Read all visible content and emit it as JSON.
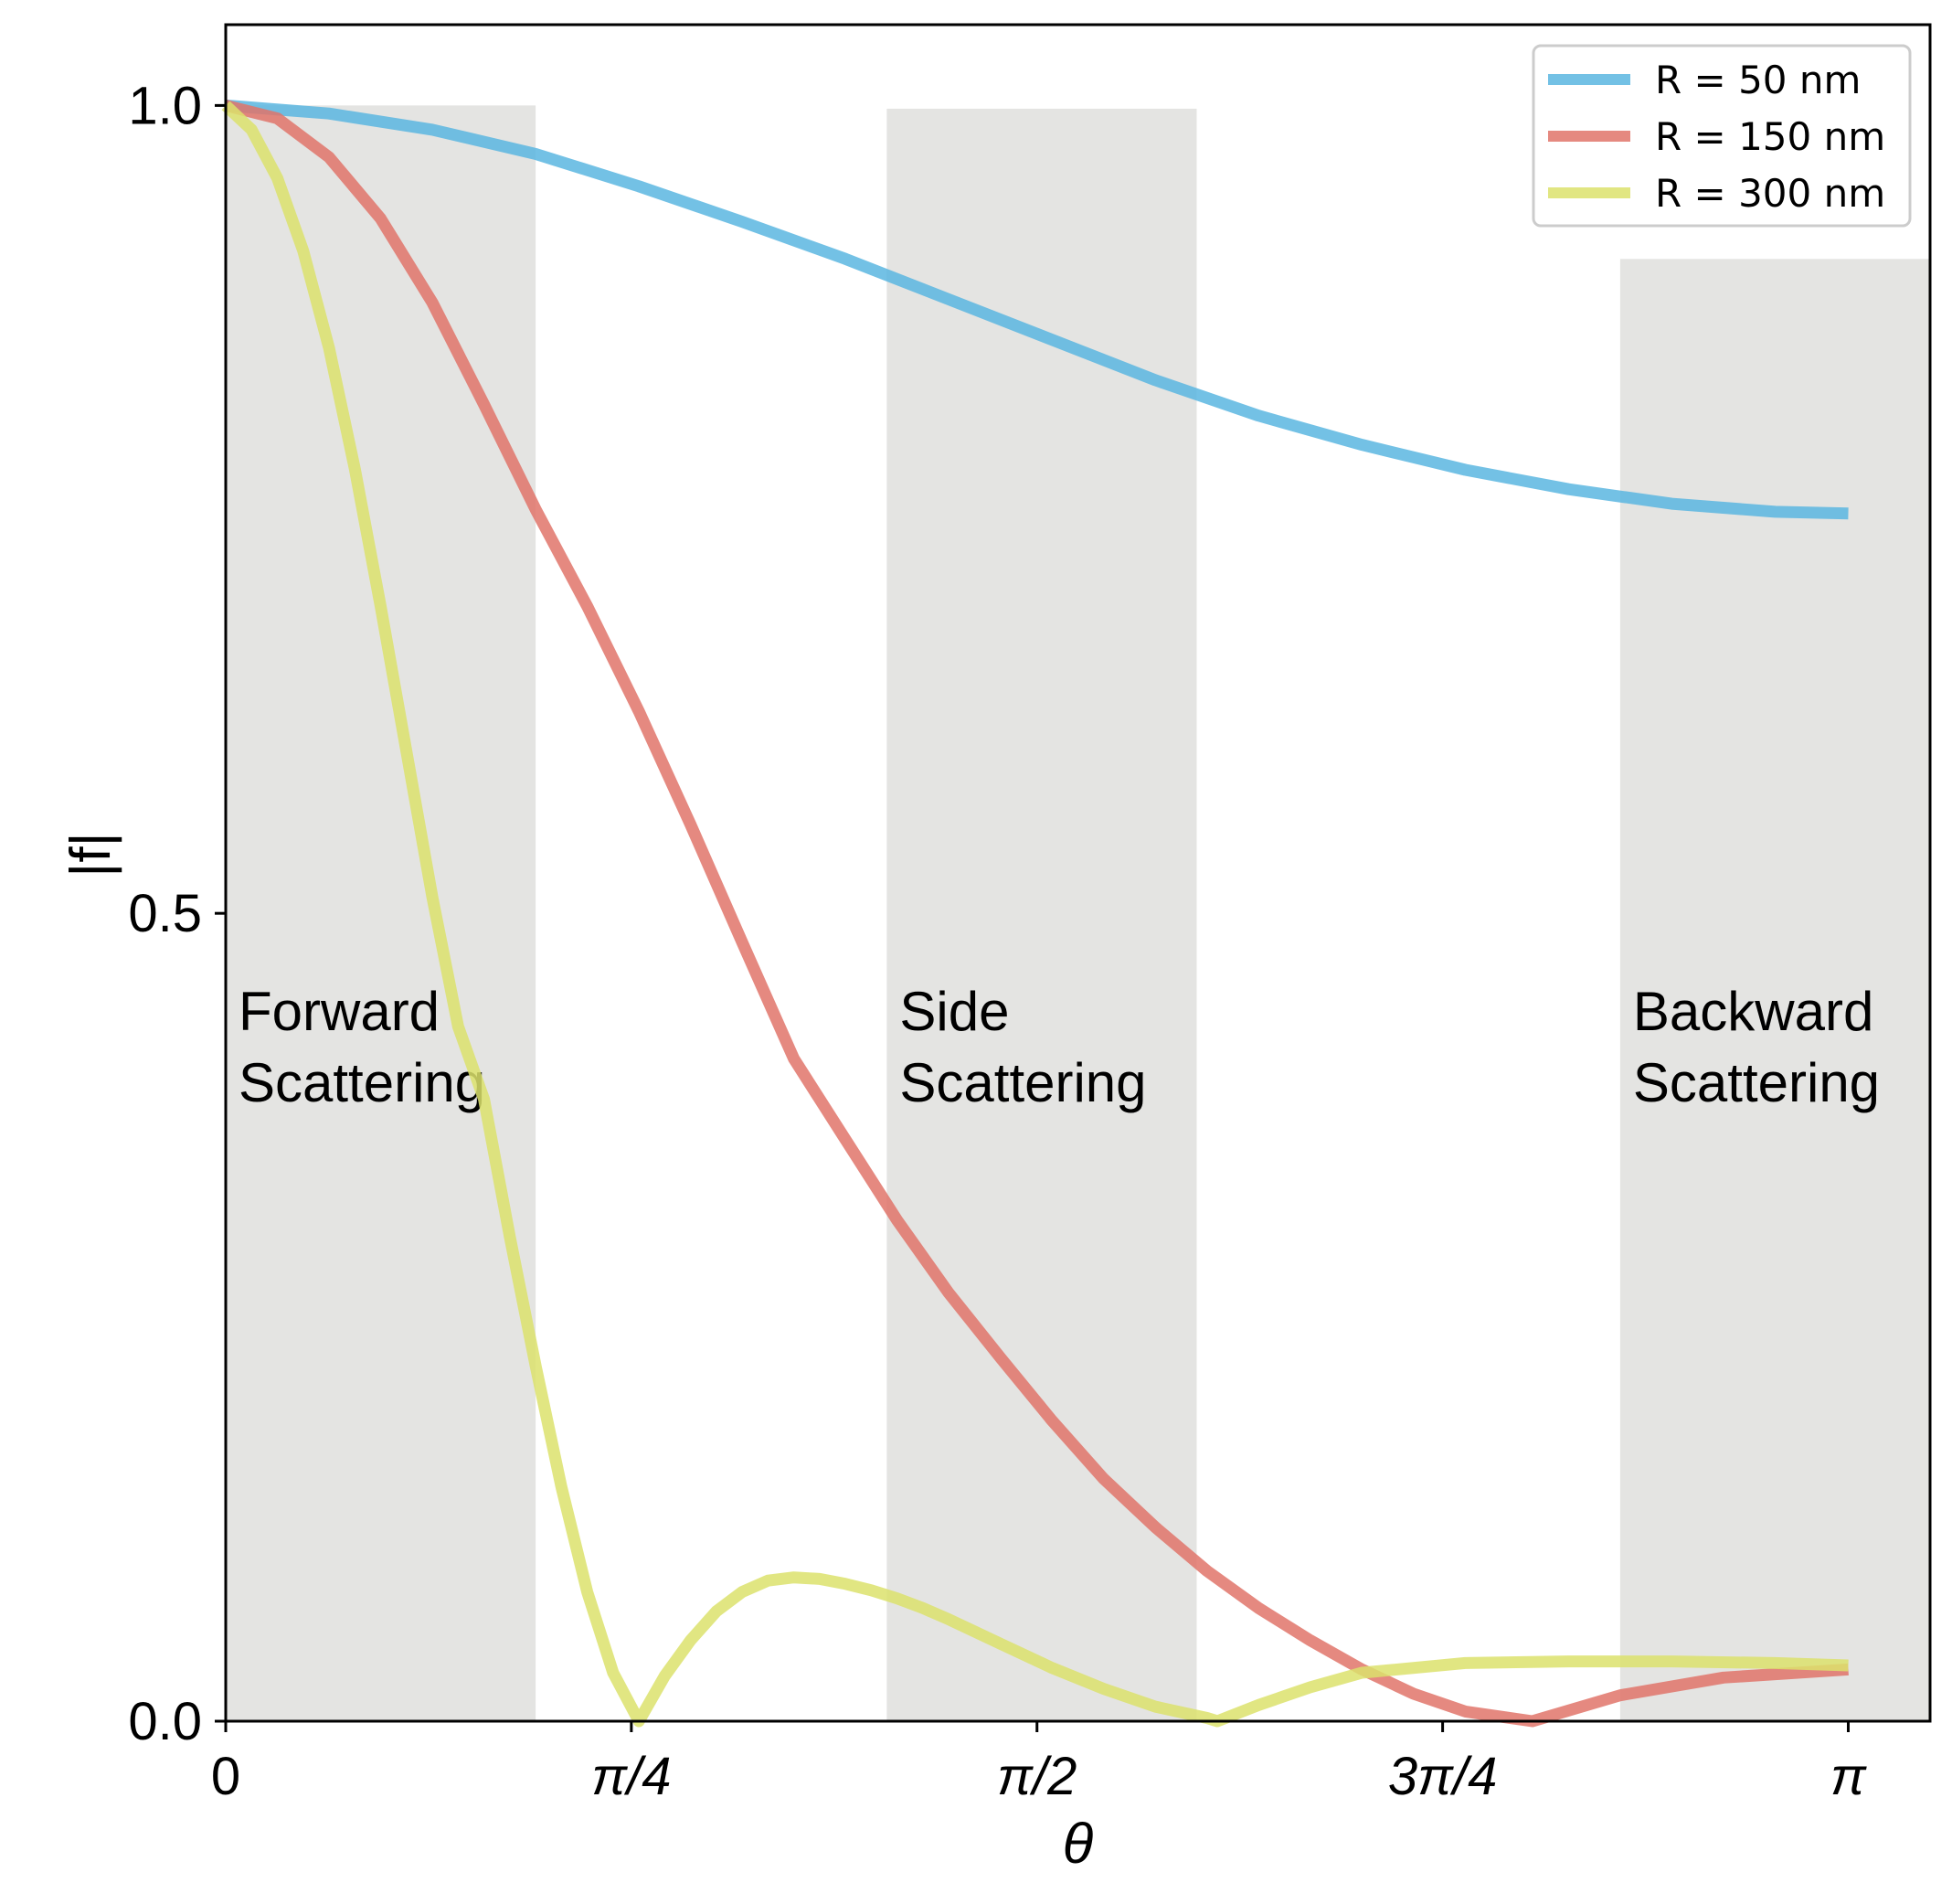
{
  "chart_data": {
    "type": "line",
    "xlabel": "θ",
    "ylabel": "|f|",
    "xlim": [
      0,
      3.3
    ],
    "ylim": [
      0,
      1.05
    ],
    "xticks": [
      {
        "value": 0,
        "label": "0"
      },
      {
        "value": 0.7854,
        "label": "π/4"
      },
      {
        "value": 1.5708,
        "label": "π/2"
      },
      {
        "value": 2.3562,
        "label": "3π/4"
      },
      {
        "value": 3.1416,
        "label": "π"
      }
    ],
    "yticks": [
      {
        "value": 0.0,
        "label": "0.0"
      },
      {
        "value": 0.5,
        "label": "0.5"
      },
      {
        "value": 1.0,
        "label": "1.0"
      }
    ],
    "grid": false,
    "legend_position": "top-right",
    "regions": [
      {
        "x_start": 0.0,
        "x_end": 0.6,
        "y_top": 1.0,
        "label_lines": [
          "Forward",
          "Scattering"
        ],
        "color": "#e4e4e2"
      },
      {
        "x_start": 1.28,
        "x_end": 1.88,
        "y_top": 0.998,
        "label_lines": [
          "Side",
          "Scattering"
        ],
        "color": "#e4e4e2"
      },
      {
        "x_start": 2.7,
        "x_end": 3.3,
        "y_top": 0.905,
        "label_lines": [
          "Backward",
          "Scattering"
        ],
        "color": "#e4e4e2"
      }
    ],
    "series": [
      {
        "name": "R = 50 nm",
        "color": "#5bb6e0",
        "x": [
          0,
          0.2,
          0.4,
          0.6,
          0.8,
          1.0,
          1.2,
          1.4,
          1.6,
          1.8,
          2.0,
          2.2,
          2.4,
          2.6,
          2.8,
          3.0,
          3.1416
        ],
        "y": [
          1.0,
          0.995,
          0.985,
          0.97,
          0.95,
          0.928,
          0.905,
          0.88,
          0.855,
          0.83,
          0.808,
          0.79,
          0.7745,
          0.7625,
          0.7535,
          0.7485,
          0.7475
        ]
      },
      {
        "name": "R = 150 nm",
        "color": "#e0746a",
        "x": [
          0,
          0.1,
          0.2,
          0.3,
          0.4,
          0.5,
          0.6,
          0.7,
          0.8,
          0.9,
          1.0,
          1.1,
          1.2,
          1.3,
          1.4,
          1.5,
          1.6,
          1.7,
          1.8,
          1.9,
          2.0,
          2.1,
          2.2,
          2.3,
          2.4,
          2.53,
          2.7,
          2.9,
          3.1416
        ],
        "y": [
          1.0,
          0.992,
          0.968,
          0.93,
          0.878,
          0.815,
          0.75,
          0.69,
          0.625,
          0.555,
          0.482,
          0.41,
          0.36,
          0.31,
          0.265,
          0.225,
          0.186,
          0.15,
          0.12,
          0.093,
          0.07,
          0.05,
          0.032,
          0.017,
          0.006,
          0.0,
          0.016,
          0.027,
          0.032
        ]
      },
      {
        "name": "R = 300 nm",
        "color": "#dce26c",
        "x": [
          0,
          0.05,
          0.1,
          0.15,
          0.2,
          0.25,
          0.3,
          0.35,
          0.4,
          0.45,
          0.5,
          0.55,
          0.6,
          0.65,
          0.7,
          0.75,
          0.8,
          0.85,
          0.9,
          0.95,
          1.0,
          1.05,
          1.1,
          1.15,
          1.2,
          1.25,
          1.3,
          1.35,
          1.4,
          1.5,
          1.6,
          1.7,
          1.8,
          1.9,
          1.92,
          2.0,
          2.1,
          2.2,
          2.4,
          2.6,
          2.8,
          3.0,
          3.1416
        ],
        "y": [
          1.0,
          0.985,
          0.955,
          0.91,
          0.85,
          0.775,
          0.69,
          0.6,
          0.51,
          0.43,
          0.385,
          0.3,
          0.22,
          0.145,
          0.08,
          0.03,
          0.0,
          0.028,
          0.05,
          0.068,
          0.08,
          0.087,
          0.089,
          0.088,
          0.085,
          0.081,
          0.076,
          0.07,
          0.063,
          0.048,
          0.033,
          0.02,
          0.009,
          0.002,
          0.0,
          0.01,
          0.021,
          0.03,
          0.036,
          0.037,
          0.037,
          0.036,
          0.0345
        ]
      }
    ]
  }
}
